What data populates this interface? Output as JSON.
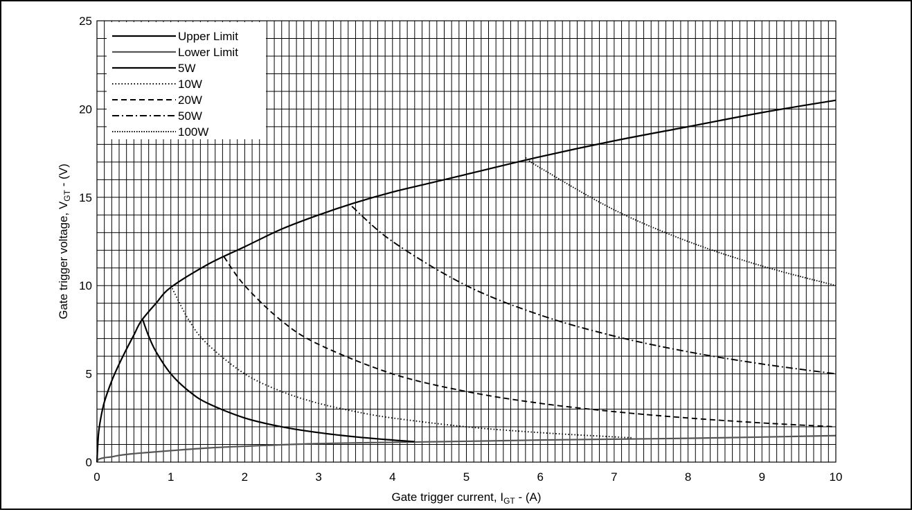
{
  "chart_data": {
    "type": "line",
    "xlabel": "Gate trigger current, I",
    "xlabel_sub": "GT",
    "xlabel_unit": " - (A)",
    "ylabel": "Gate trigger voltage, V",
    "ylabel_sub": "GT",
    "ylabel_unit": " - (V)",
    "xlim": [
      0,
      10
    ],
    "ylim": [
      0,
      25
    ],
    "x_ticks": [
      "0",
      "1",
      "2",
      "3",
      "4",
      "5",
      "6",
      "7",
      "8",
      "9",
      "10"
    ],
    "y_ticks": [
      "0",
      "5",
      "10",
      "15",
      "20",
      "25"
    ],
    "grid": true,
    "legend_position": "top-left",
    "series": [
      {
        "name": "Upper Limit",
        "style": "solid",
        "color": "#000000",
        "x": [
          0,
          0.02,
          0.05,
          0.1,
          0.2,
          0.3,
          0.4,
          0.5,
          0.6,
          0.8,
          1,
          1.5,
          2,
          2.5,
          3,
          3.5,
          4,
          4.5,
          5,
          6,
          7,
          8,
          9,
          10
        ],
        "y": [
          0,
          1.55,
          2.45,
          3.4,
          4.6,
          5.55,
          6.4,
          7.2,
          8.0,
          9.0,
          9.9,
          11.2,
          12.2,
          13.2,
          14.0,
          14.7,
          15.3,
          15.8,
          16.3,
          17.3,
          18.2,
          19.0,
          19.8,
          20.5
        ]
      },
      {
        "name": "Lower Limit",
        "style": "solid",
        "color": "#555555",
        "x": [
          0,
          0.02,
          0.05,
          0.1,
          0.2,
          0.3,
          0.5,
          0.7,
          1,
          1.5,
          2,
          3,
          4,
          5,
          6,
          7,
          8,
          9,
          10
        ],
        "y": [
          0,
          0.15,
          0.2,
          0.25,
          0.3,
          0.38,
          0.48,
          0.55,
          0.65,
          0.8,
          0.9,
          1.05,
          1.12,
          1.18,
          1.25,
          1.3,
          1.35,
          1.42,
          1.5
        ]
      },
      {
        "name": "5W",
        "style": "solid",
        "color": "#000000",
        "x": [
          0.62,
          0.7,
          0.8,
          1,
          1.25,
          1.5,
          2,
          2.5,
          3,
          3.5,
          4,
          4.3
        ],
        "y": [
          8.06,
          7.14,
          6.25,
          5.0,
          4.0,
          3.33,
          2.5,
          2.0,
          1.67,
          1.43,
          1.25,
          1.16
        ]
      },
      {
        "name": "10W",
        "style": "dotted",
        "color": "#000000",
        "x": [
          1.0,
          1.25,
          1.5,
          2,
          2.5,
          3,
          3.5,
          4,
          5,
          6,
          7,
          7.25
        ],
        "y": [
          10.0,
          8.0,
          6.67,
          5.0,
          4.0,
          3.33,
          2.86,
          2.5,
          2.0,
          1.67,
          1.43,
          1.38
        ]
      },
      {
        "name": "20W",
        "style": "dashed",
        "color": "#000000",
        "x": [
          1.72,
          2,
          2.5,
          3,
          4,
          5,
          6,
          7,
          8,
          9,
          10
        ],
        "y": [
          11.63,
          10.0,
          8.0,
          6.67,
          5.0,
          4.0,
          3.33,
          2.86,
          2.5,
          2.22,
          2.0
        ]
      },
      {
        "name": "50W",
        "style": "dashdot",
        "color": "#000000",
        "x": [
          3.45,
          4,
          5,
          6,
          7,
          8,
          9,
          10
        ],
        "y": [
          14.49,
          12.5,
          10.0,
          8.33,
          7.14,
          6.25,
          5.56,
          5.0
        ]
      },
      {
        "name": "100W",
        "style": "dotted-dense",
        "color": "#000000",
        "x": [
          5.8,
          6,
          7,
          8,
          9,
          10
        ],
        "y": [
          17.24,
          16.67,
          14.29,
          12.5,
          11.11,
          10.0
        ]
      }
    ]
  }
}
